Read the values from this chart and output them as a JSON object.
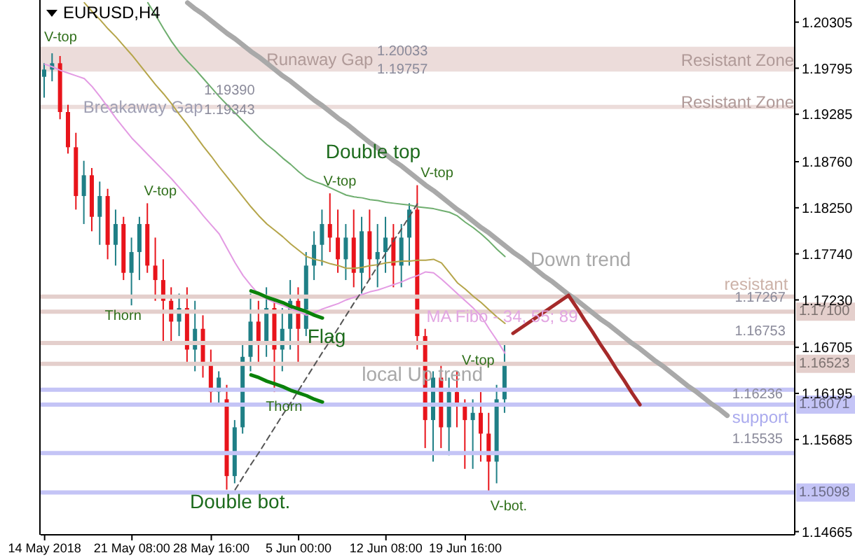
{
  "chart_data": {
    "type": "candlestick",
    "title": "EURUSD,H4",
    "categories": [
      "14 May 2018",
      null,
      null,
      null,
      null,
      null,
      null,
      null,
      null,
      null,
      null,
      "21 May 08:00",
      null,
      null,
      null,
      null,
      null,
      null,
      null,
      null,
      null,
      "28 May 16:00",
      null,
      null,
      null,
      null,
      null,
      null,
      null,
      null,
      null,
      null,
      "5 Jun 00:00",
      null,
      null,
      null,
      null,
      null,
      null,
      null,
      null,
      null,
      null,
      "12 Jun 08:00",
      null,
      null,
      null,
      null,
      null,
      null,
      null,
      null,
      null,
      "19 Jun 16:00",
      null,
      null,
      null,
      null,
      null,
      null,
      null,
      null,
      null,
      null,
      null,
      null,
      null,
      null,
      null,
      null,
      null,
      null,
      null,
      null,
      null,
      null,
      null,
      null,
      null,
      null,
      null,
      null,
      null,
      null,
      null,
      null,
      null,
      null,
      null,
      null,
      null,
      null,
      null,
      null,
      null
    ],
    "ohlc": [
      [
        1.197,
        1.1985,
        1.1947,
        1.1978
      ],
      [
        1.1978,
        1.1996,
        1.1965,
        1.1985
      ],
      [
        1.1985,
        1.1993,
        1.1923,
        1.1931
      ],
      [
        1.1931,
        1.1939,
        1.1885,
        1.1892
      ],
      [
        1.1892,
        1.1908,
        1.1823,
        1.1838
      ],
      [
        1.1838,
        1.1877,
        1.1807,
        1.1861
      ],
      [
        1.1861,
        1.1869,
        1.1799,
        1.1815
      ],
      [
        1.1815,
        1.1854,
        1.1784,
        1.1838
      ],
      [
        1.1838,
        1.1846,
        1.1768,
        1.1784
      ],
      [
        1.1784,
        1.1823,
        1.1761,
        1.1807
      ],
      [
        1.1807,
        1.1815,
        1.1745,
        1.1753
      ],
      [
        1.1753,
        1.1792,
        1.1717,
        1.1776
      ],
      [
        1.1776,
        1.1815,
        1.1745,
        1.1807
      ],
      [
        1.1807,
        1.183,
        1.1753,
        1.1761
      ],
      [
        1.1761,
        1.1792,
        1.1722,
        1.1745
      ],
      [
        1.1745,
        1.1768,
        1.1675,
        1.1722
      ],
      [
        1.1722,
        1.1737,
        1.1675,
        1.1699
      ],
      [
        1.1699,
        1.173,
        1.1683,
        1.1714
      ],
      [
        1.1714,
        1.1737,
        1.1652,
        1.1668
      ],
      [
        1.1668,
        1.1722,
        1.1644,
        1.1691
      ],
      [
        1.1691,
        1.1706,
        1.1637,
        1.1652
      ],
      [
        1.1652,
        1.1668,
        1.1606,
        1.1621
      ],
      [
        1.1621,
        1.1644,
        1.1606,
        1.1637
      ],
      [
        1.1613,
        1.1629,
        1.1513,
        1.1528
      ],
      [
        1.1528,
        1.159,
        1.152,
        1.1582
      ],
      [
        1.1582,
        1.1675,
        1.1575,
        1.166
      ],
      [
        1.166,
        1.173,
        1.1644,
        1.1699
      ],
      [
        1.1699,
        1.1722,
        1.1652,
        1.1675
      ],
      [
        1.1675,
        1.1737,
        1.166,
        1.1714
      ],
      [
        1.1714,
        1.1722,
        1.1621,
        1.1668
      ],
      [
        1.1668,
        1.1714,
        1.1644,
        1.1691
      ],
      [
        1.1691,
        1.1745,
        1.1668,
        1.1722
      ],
      [
        1.1722,
        1.1737,
        1.1652,
        1.1691
      ],
      [
        1.1691,
        1.1776,
        1.1683,
        1.1761
      ],
      [
        1.1761,
        1.1799,
        1.1745,
        1.1784
      ],
      [
        1.1784,
        1.1823,
        1.1761,
        1.1807
      ],
      [
        1.1807,
        1.1841,
        1.1776,
        1.1792
      ],
      [
        1.1792,
        1.1823,
        1.1753,
        1.1768
      ],
      [
        1.1768,
        1.1807,
        1.1745,
        1.1792
      ],
      [
        1.1792,
        1.1823,
        1.1737,
        1.1753
      ],
      [
        1.1753,
        1.1815,
        1.173,
        1.1799
      ],
      [
        1.1799,
        1.1823,
        1.1745,
        1.1768
      ],
      [
        1.1768,
        1.1807,
        1.1737,
        1.1776
      ],
      [
        1.1776,
        1.1815,
        1.1753,
        1.1792
      ],
      [
        1.1792,
        1.1807,
        1.1737,
        1.1761
      ],
      [
        1.1761,
        1.1807,
        1.1737,
        1.1792
      ],
      [
        1.1792,
        1.183,
        1.1761,
        1.1823
      ],
      [
        1.1823,
        1.185,
        1.1668,
        1.1683
      ],
      [
        1.1683,
        1.1691,
        1.1559,
        1.159
      ],
      [
        1.159,
        1.1644,
        1.1544,
        1.1637
      ],
      [
        1.1637,
        1.1652,
        1.1559,
        1.1582
      ],
      [
        1.1582,
        1.1637,
        1.1551,
        1.1621
      ],
      [
        1.1621,
        1.1644,
        1.1582,
        1.1606
      ],
      [
        1.1606,
        1.1613,
        1.1536,
        1.159
      ],
      [
        1.159,
        1.1613,
        1.1536,
        1.1598
      ],
      [
        1.1598,
        1.1621,
        1.1544,
        1.1575
      ],
      [
        1.1575,
        1.1598,
        1.1509,
        1.1544
      ],
      [
        1.1544,
        1.1629,
        1.152,
        1.1613
      ],
      [
        1.1613,
        1.1675,
        1.1598,
        1.1652
      ],
      null,
      null,
      null,
      null,
      null,
      null,
      null,
      null,
      null,
      null,
      null,
      null,
      null,
      null,
      null,
      null,
      null,
      null,
      null,
      null,
      null,
      null,
      null,
      null,
      null,
      null,
      null,
      null,
      null,
      null,
      null,
      null,
      null,
      null,
      null,
      null
    ],
    "colors": [
      "#1f7f86",
      "#1f7f86",
      "#e8141b",
      "#e8141b",
      "#e8141b",
      "#1f7f86",
      "#e8141b",
      "#1f7f86",
      "#e8141b",
      "#1f7f86",
      "#e8141b",
      "#1f7f86",
      "#1f7f86",
      "#e8141b",
      "#e8141b",
      "#e8141b",
      "#e8141b",
      "#1f7f86",
      "#e8141b",
      "#1f7f86",
      "#e8141b",
      "#e8141b",
      "#1f7f86",
      "#e8141b",
      "#1f7f86",
      "#1f7f86",
      "#1f7f86",
      "#e8141b",
      "#1f7f86",
      "#e8141b",
      "#1f7f86",
      "#1f7f86",
      "#e8141b",
      "#1f7f86",
      "#1f7f86",
      "#1f7f86",
      "#e8141b",
      "#e8141b",
      "#1f7f86",
      "#e8141b",
      "#1f7f86",
      "#e8141b",
      "#1f7f86",
      "#1f7f86",
      "#e8141b",
      "#1f7f86",
      "#1f7f86",
      "#e8141b",
      "#e8141b",
      "#1f7f86",
      "#e8141b",
      "#1f7f86",
      "#e8141b",
      "#e8141b",
      "#1f7f86",
      "#e8141b",
      "#e8141b",
      "#1f7f86",
      "#1f7f86",
      null,
      null,
      null,
      null,
      null,
      null,
      null,
      null,
      null,
      null,
      null,
      null,
      null,
      null,
      null,
      null,
      null,
      null,
      null,
      null,
      null,
      null,
      null,
      null,
      null,
      null,
      null,
      null,
      null,
      null,
      null,
      null,
      null,
      null,
      null,
      null
    ],
    "series": [
      {
        "type": "line",
        "color": "#e39be3",
        "values": [
          1.1984,
          1.1981,
          1.1977,
          1.1974,
          1.1971,
          1.1968,
          1.1959,
          1.1948,
          1.1936,
          1.1924,
          1.1913,
          1.1902,
          1.1893,
          1.1884,
          1.1875,
          1.1866,
          1.1857,
          1.1847,
          1.1837,
          1.1827,
          1.1816,
          1.1806,
          1.1796,
          1.178,
          1.1764,
          1.175,
          1.1739,
          1.1729,
          1.1724,
          1.172,
          1.1717,
          1.1713,
          1.171,
          1.1706,
          1.1709,
          1.1713,
          1.1716,
          1.1719,
          1.1723,
          1.1726,
          1.1729,
          1.1732,
          1.1734,
          1.1737,
          1.174,
          1.1743,
          1.1747,
          1.175,
          1.1754,
          1.1753,
          1.1746,
          1.1738,
          1.173,
          1.1722,
          1.1714,
          1.1705,
          1.1691,
          1.1678,
          1.1664,
          null,
          null,
          null,
          null,
          null,
          null,
          null,
          null,
          null,
          null,
          null,
          null,
          null,
          null,
          null,
          null,
          null,
          null,
          null,
          null,
          null,
          null,
          null,
          null,
          null,
          null,
          null,
          null,
          null,
          null,
          null,
          null,
          null,
          null,
          null,
          null
        ]
      },
      {
        "type": "line",
        "color": "#b5a54a",
        "values": [
          null,
          null,
          null,
          null,
          null,
          1.2052,
          1.2042,
          1.2033,
          1.2023,
          1.2014,
          1.2004,
          1.1994,
          1.1983,
          1.1972,
          1.1961,
          1.1951,
          1.194,
          1.1928,
          1.1917,
          1.1905,
          1.1893,
          1.1882,
          1.187,
          1.1859,
          1.1848,
          1.1837,
          1.1826,
          1.1816,
          1.1807,
          1.18,
          1.1793,
          1.1785,
          1.1778,
          1.1771,
          1.1768,
          1.1766,
          1.1763,
          1.1761,
          1.1758,
          1.1758,
          1.1759,
          1.1761,
          1.1762,
          1.1764,
          1.1765,
          1.1766,
          1.1766,
          1.1767,
          1.1767,
          1.1768,
          1.1764,
          1.1753,
          1.1742,
          1.1735,
          1.1727,
          1.172,
          1.1712,
          1.1704,
          1.1697,
          null,
          null,
          null,
          null,
          null,
          null,
          null,
          null,
          null,
          null,
          null,
          null,
          null,
          null,
          null,
          null,
          null,
          null,
          null,
          null,
          null,
          null,
          null,
          null,
          null,
          null,
          null,
          null,
          null,
          null,
          null,
          null,
          null,
          null,
          null,
          null
        ]
      },
      {
        "type": "line",
        "color": "#6fae6f",
        "values": [
          null,
          null,
          null,
          null,
          null,
          null,
          null,
          null,
          null,
          null,
          null,
          null,
          null,
          1.2052,
          1.2038,
          1.2023,
          1.2009,
          1.1997,
          1.1987,
          1.1978,
          1.1968,
          1.1958,
          1.1948,
          1.1939,
          1.193,
          1.1921,
          1.1912,
          1.1903,
          1.1895,
          1.1888,
          1.188,
          1.1873,
          1.1865,
          1.1858,
          1.1854,
          1.1851,
          1.1847,
          1.1843,
          1.1839,
          1.1837,
          1.1836,
          1.1834,
          1.1833,
          1.1831,
          1.183,
          1.1829,
          1.1828,
          1.1826,
          1.1825,
          1.1824,
          1.1822,
          1.182,
          1.1816,
          1.1809,
          1.1803,
          1.1796,
          1.1788,
          1.1779,
          1.1771,
          null,
          null,
          null,
          null,
          null,
          null,
          null,
          null,
          null,
          null,
          null,
          null,
          null,
          null,
          null,
          null,
          null,
          null,
          null,
          null,
          null,
          null,
          null,
          null,
          null,
          null,
          null,
          null,
          null,
          null,
          null,
          null,
          null,
          null,
          null,
          null
        ]
      },
      {
        "type": "line",
        "color": "#a9a9a9",
        "values": [
          null,
          null,
          null,
          null,
          null,
          null,
          null,
          null,
          null,
          null,
          null,
          null,
          null,
          null,
          null,
          null,
          null,
          null,
          1.2052,
          1.2045,
          1.2039,
          1.2032,
          1.2025,
          1.2018,
          1.2012,
          1.2005,
          1.1998,
          1.1992,
          1.1985,
          1.1978,
          1.1971,
          1.1965,
          1.1958,
          1.1951,
          1.1944,
          1.1938,
          1.1931,
          1.1924,
          1.1918,
          1.1911,
          1.1904,
          1.1897,
          1.1891,
          1.1884,
          1.1877,
          1.1871,
          1.1864,
          1.1857,
          1.185,
          1.1844,
          1.1837,
          1.183,
          1.1823,
          1.1817,
          1.181,
          1.1803,
          1.1797,
          1.179,
          1.1783,
          1.1776,
          1.177,
          1.1763,
          1.1756,
          1.1749,
          1.1743,
          1.1736,
          1.1729,
          1.1723,
          1.1716,
          1.1709,
          1.1702,
          1.1696,
          1.1689,
          1.1682,
          1.1675,
          1.1669,
          1.1662,
          1.1655,
          1.1649,
          1.1642,
          1.1635,
          1.1628,
          1.1622,
          1.1615,
          1.1608,
          1.1602,
          1.1595,
          null,
          null,
          null,
          null,
          null,
          null,
          null,
          null
        ]
      },
      {
        "type": "line",
        "color": "#0a820a",
        "values": [
          null,
          null,
          null,
          null,
          null,
          null,
          null,
          null,
          null,
          null,
          null,
          null,
          null,
          null,
          null,
          null,
          null,
          null,
          null,
          null,
          null,
          null,
          null,
          null,
          null,
          null,
          1.1733,
          1.173,
          1.1726,
          1.1723,
          1.172,
          1.1716,
          1.1713,
          1.171,
          1.1706,
          1.1703,
          null,
          null,
          null,
          null,
          null,
          null,
          null,
          null,
          null,
          null,
          null,
          null,
          null,
          null,
          null,
          null,
          null,
          null,
          null,
          null,
          null,
          null,
          null,
          null,
          null,
          null,
          null,
          null,
          null,
          null,
          null,
          null,
          null,
          null,
          null,
          null,
          null,
          null,
          null,
          null,
          null,
          null,
          null,
          null,
          null,
          null,
          null,
          null,
          null,
          null,
          null,
          null,
          null,
          null,
          null,
          null,
          null,
          null,
          null
        ]
      },
      {
        "type": "line",
        "color": "#0a820a",
        "values": [
          null,
          null,
          null,
          null,
          null,
          null,
          null,
          null,
          null,
          null,
          null,
          null,
          null,
          null,
          null,
          null,
          null,
          null,
          null,
          null,
          null,
          null,
          null,
          null,
          null,
          null,
          1.164,
          1.1637,
          1.1633,
          1.163,
          1.1627,
          1.1623,
          1.162,
          1.1617,
          1.1613,
          1.161,
          null,
          null,
          null,
          null,
          null,
          null,
          null,
          null,
          null,
          null,
          null,
          null,
          null,
          null,
          null,
          null,
          null,
          null,
          null,
          null,
          null,
          null,
          null,
          null,
          null,
          null,
          null,
          null,
          null,
          null,
          null,
          null,
          null,
          null,
          null,
          null,
          null,
          null,
          null,
          null,
          null,
          null,
          null,
          null,
          null,
          null,
          null,
          null,
          null,
          null,
          null,
          null,
          null,
          null,
          null,
          null,
          null,
          null,
          null
        ]
      },
      {
        "type": "line",
        "color": "#555555",
        "line_style": "dashed",
        "values": [
          null,
          null,
          null,
          null,
          null,
          null,
          null,
          null,
          null,
          null,
          null,
          null,
          null,
          null,
          null,
          null,
          null,
          null,
          null,
          null,
          null,
          null,
          null,
          null,
          1.1513,
          1.1527,
          1.1541,
          1.1554,
          1.1568,
          1.1582,
          1.1596,
          1.1609,
          1.1623,
          1.1637,
          1.1651,
          1.1665,
          1.1678,
          1.1692,
          1.1706,
          1.172,
          1.1733,
          1.1747,
          1.1761,
          1.1775,
          1.1789,
          1.1802,
          1.1816,
          1.183,
          null,
          null,
          null,
          null,
          null,
          null,
          null,
          null,
          null,
          null,
          null,
          null,
          null,
          null,
          null,
          null,
          null,
          null,
          null,
          null,
          null,
          null,
          null,
          null,
          null,
          null,
          null,
          null,
          null,
          null,
          null,
          null,
          null,
          null,
          null,
          null,
          null,
          null,
          null,
          null,
          null,
          null,
          null,
          null,
          null,
          null,
          null
        ]
      },
      {
        "type": "line",
        "color": "#a52a2a",
        "values": [
          null,
          null,
          null,
          null,
          null,
          null,
          null,
          null,
          null,
          null,
          null,
          null,
          null,
          null,
          null,
          null,
          null,
          null,
          null,
          null,
          null,
          null,
          null,
          null,
          null,
          null,
          null,
          null,
          null,
          null,
          null,
          null,
          null,
          null,
          null,
          null,
          null,
          null,
          null,
          null,
          null,
          null,
          null,
          null,
          null,
          null,
          null,
          null,
          null,
          null,
          null,
          null,
          null,
          null,
          null,
          null,
          null,
          null,
          null,
          1.1686,
          1.1692,
          1.1698,
          1.1704,
          1.171,
          1.1716,
          1.1722,
          1.1728,
          1.1715,
          1.1701,
          1.1688,
          1.1674,
          1.1661,
          1.1647,
          1.1634,
          1.162,
          1.1607,
          null,
          null,
          null,
          null,
          null,
          null,
          null,
          null,
          null,
          null,
          null,
          null,
          null,
          null,
          null,
          null,
          null,
          null,
          null
        ]
      }
    ],
    "ylim": [
      1.1463,
      1.2055
    ],
    "yticks": [
      1.20305,
      1.19795,
      1.19285,
      {
        "value": 1.1876,
        "label": "1.18760"
      },
      {
        "value": 1.1825,
        "label": "1.18250"
      },
      {
        "value": 1.1774,
        "label": "1.17740"
      },
      {
        "value": 1.1723,
        "label": "1.17230"
      },
      1.16705,
      1.16195,
      1.15685,
      1.14665
    ],
    "bands": [
      {
        "axis": "y",
        "from": 1.19757,
        "to": 1.20033,
        "label": "Runaway Gap",
        "color": "#ecdcda"
      },
      {
        "axis": "y",
        "from": 1.19343,
        "to": 1.1939,
        "label": "Breakaway Gap",
        "color": "#ecdcda"
      }
    ],
    "ref_lines": [
      {
        "axis": "y",
        "value": 1.17267,
        "color": "#e4cfcc"
      },
      {
        "axis": "y",
        "value": 1.171,
        "label": "1.17100",
        "color": "#e4cfcc"
      },
      {
        "axis": "y",
        "value": 1.16753,
        "color": "#e4cfcc"
      },
      {
        "axis": "y",
        "value": 1.16523,
        "label": "1.16523",
        "color": "#e4cfcc"
      },
      {
        "axis": "y",
        "value": 1.16236,
        "color": "#c4c4f6"
      },
      {
        "axis": "y",
        "value": 1.16071,
        "label": "1.16071",
        "color": "#c4c4f6"
      },
      {
        "axis": "y",
        "value": 1.15535,
        "color": "#c4c4f6"
      },
      {
        "axis": "y",
        "value": 1.15098,
        "label": "1.15098",
        "color": "#c4c4f6"
      }
    ],
    "annotations": [
      "V-top",
      {
        "text": "Double top",
        "y": 1.1888
      },
      "V-top",
      "V-top",
      "V-top",
      "Thorn",
      {
        "text": "Thorn",
        "y": 1.1604
      },
      {
        "text": "Flag",
        "y": 1.1683
      },
      "local Up trend",
      {
        "text": "Double bot.",
        "y": 1.15
      },
      {
        "text": "V-top",
        "y": 1.1655
      },
      "V-bot.",
      "Down trend",
      {
        "text": "MA Fibo - 34, 55; 89",
        "y": 1.1705
      },
      "resistant",
      "support",
      "1.17267",
      "1.16753",
      "1.16236",
      "1.15535",
      "Resistant Zone",
      "Resistant Zone",
      "1.20033",
      "1.19757",
      "1.19390",
      "1.19343"
    ]
  }
}
